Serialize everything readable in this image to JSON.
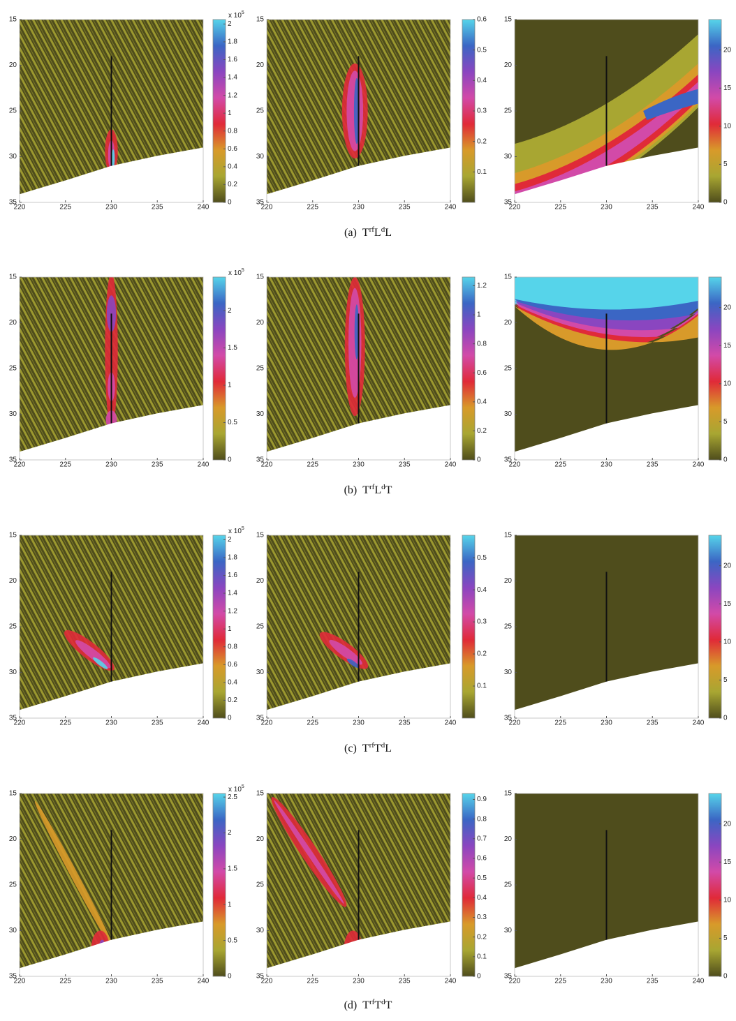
{
  "colormap": [
    "#4f4d1c",
    "#a8a632",
    "#d89a2a",
    "#e02a38",
    "#d24aa8",
    "#8a46c0",
    "#3b66c4",
    "#56d4ea"
  ],
  "captions": [
    {
      "label": "(a)",
      "terms": [
        {
          "base": "T",
          "sup": "rf"
        },
        {
          "base": "L",
          "sup": "d"
        },
        {
          "base": "L"
        }
      ]
    },
    {
      "label": "(b)",
      "terms": [
        {
          "base": "T",
          "sup": "rf"
        },
        {
          "base": "L",
          "sup": "d"
        },
        {
          "base": "T"
        }
      ]
    },
    {
      "label": "(c)",
      "terms": [
        {
          "base": "T",
          "sup": "rf"
        },
        {
          "base": "T",
          "sup": "d"
        },
        {
          "base": "L"
        }
      ]
    },
    {
      "label": "(d)",
      "terms": [
        {
          "base": "T",
          "sup": "rf"
        },
        {
          "base": "T",
          "sup": "d"
        },
        {
          "base": "T"
        }
      ]
    }
  ],
  "chart_data": [
    {
      "type": "heatmap",
      "xlim": [
        220,
        240
      ],
      "ylim": [
        15,
        35
      ],
      "y_reversed": true,
      "xticks": [
        220,
        225,
        230,
        235,
        240
      ],
      "yticks": [
        15,
        20,
        25,
        30,
        35
      ],
      "colorbar": {
        "lim": [
          0,
          2.05
        ],
        "ticks": [
          0,
          0.2,
          0.4,
          0.6,
          0.8,
          1,
          1.2,
          1.4,
          1.6,
          1.8,
          2
        ],
        "exponent": {
          "base": "x 10",
          "sup": "5"
        }
      }
    },
    {
      "type": "heatmap",
      "xlim": [
        220,
        240
      ],
      "ylim": [
        15,
        35
      ],
      "y_reversed": true,
      "xticks": [
        220,
        225,
        230,
        235,
        240
      ],
      "yticks": [
        15,
        20,
        25,
        30,
        35
      ],
      "colorbar": {
        "lim": [
          0,
          0.6
        ],
        "ticks": [
          0.1,
          0.2,
          0.3,
          0.4,
          0.5,
          0.6
        ]
      }
    },
    {
      "type": "heatmap",
      "xlim": [
        220,
        240
      ],
      "ylim": [
        15,
        35
      ],
      "y_reversed": true,
      "xticks": [
        220,
        225,
        230,
        235,
        240
      ],
      "yticks": [
        15,
        20,
        25,
        30,
        35
      ],
      "colorbar": {
        "lim": [
          0,
          24
        ],
        "ticks": [
          0,
          5,
          10,
          15,
          20
        ]
      }
    },
    {
      "type": "heatmap",
      "xlim": [
        220,
        240
      ],
      "ylim": [
        15,
        35
      ],
      "y_reversed": true,
      "xticks": [
        220,
        225,
        230,
        235,
        240
      ],
      "yticks": [
        15,
        20,
        25,
        30,
        35
      ],
      "colorbar": {
        "lim": [
          0,
          2.45
        ],
        "ticks": [
          0,
          0.5,
          1,
          1.5,
          2
        ],
        "exponent": {
          "base": "x 10",
          "sup": "5"
        }
      }
    },
    {
      "type": "heatmap",
      "xlim": [
        220,
        240
      ],
      "ylim": [
        15,
        35
      ],
      "y_reversed": true,
      "xticks": [
        220,
        225,
        230,
        235,
        240
      ],
      "yticks": [
        15,
        20,
        25,
        30,
        35
      ],
      "colorbar": {
        "lim": [
          0,
          1.26
        ],
        "ticks": [
          0,
          0.2,
          0.4,
          0.6,
          0.8,
          1,
          1.2
        ]
      }
    },
    {
      "type": "heatmap",
      "xlim": [
        220,
        240
      ],
      "ylim": [
        15,
        35
      ],
      "y_reversed": true,
      "xticks": [
        220,
        225,
        230,
        235,
        240
      ],
      "yticks": [
        15,
        20,
        25,
        30,
        35
      ],
      "colorbar": {
        "lim": [
          0,
          24
        ],
        "ticks": [
          0,
          5,
          10,
          15,
          20
        ]
      }
    },
    {
      "type": "heatmap",
      "xlim": [
        220,
        240
      ],
      "ylim": [
        15,
        35
      ],
      "y_reversed": true,
      "xticks": [
        220,
        225,
        230,
        235,
        240
      ],
      "yticks": [
        15,
        20,
        25,
        30,
        35
      ],
      "colorbar": {
        "lim": [
          0,
          2.05
        ],
        "ticks": [
          0,
          0.2,
          0.4,
          0.6,
          0.8,
          1,
          1.2,
          1.4,
          1.6,
          1.8,
          2
        ],
        "exponent": {
          "base": "x 10",
          "sup": "5"
        }
      }
    },
    {
      "type": "heatmap",
      "xlim": [
        220,
        240
      ],
      "ylim": [
        15,
        35
      ],
      "y_reversed": true,
      "xticks": [
        220,
        225,
        230,
        235,
        240
      ],
      "yticks": [
        15,
        20,
        25,
        30,
        35
      ],
      "colorbar": {
        "lim": [
          0,
          0.57
        ],
        "ticks": [
          0.1,
          0.2,
          0.3,
          0.4,
          0.5
        ]
      }
    },
    {
      "type": "heatmap",
      "xlim": [
        220,
        240
      ],
      "ylim": [
        15,
        35
      ],
      "y_reversed": true,
      "xticks": [
        220,
        225,
        230,
        235,
        240
      ],
      "yticks": [
        15,
        20,
        25,
        30,
        35
      ],
      "colorbar": {
        "lim": [
          0,
          24
        ],
        "ticks": [
          0,
          5,
          10,
          15,
          20
        ]
      }
    },
    {
      "type": "heatmap",
      "xlim": [
        220,
        240
      ],
      "ylim": [
        15,
        35
      ],
      "y_reversed": true,
      "xticks": [
        220,
        225,
        230,
        235,
        240
      ],
      "yticks": [
        15,
        20,
        25,
        30,
        35
      ],
      "colorbar": {
        "lim": [
          0,
          2.55
        ],
        "ticks": [
          0,
          0.5,
          1,
          1.5,
          2,
          2.5
        ],
        "exponent": {
          "base": "x 10",
          "sup": "5"
        }
      }
    },
    {
      "type": "heatmap",
      "xlim": [
        220,
        240
      ],
      "ylim": [
        15,
        35
      ],
      "y_reversed": true,
      "xticks": [
        220,
        225,
        230,
        235,
        240
      ],
      "yticks": [
        15,
        20,
        25,
        30,
        35
      ],
      "colorbar": {
        "lim": [
          0,
          0.93
        ],
        "ticks": [
          0,
          0.1,
          0.2,
          0.3,
          0.4,
          0.5,
          0.6,
          0.7,
          0.8,
          0.9
        ]
      }
    },
    {
      "type": "heatmap",
      "xlim": [
        220,
        240
      ],
      "ylim": [
        15,
        35
      ],
      "y_reversed": true,
      "xticks": [
        220,
        225,
        230,
        235,
        240
      ],
      "yticks": [
        15,
        20,
        25,
        30,
        35
      ],
      "colorbar": {
        "lim": [
          0,
          24
        ],
        "ticks": [
          0,
          5,
          10,
          15,
          20
        ]
      }
    }
  ]
}
